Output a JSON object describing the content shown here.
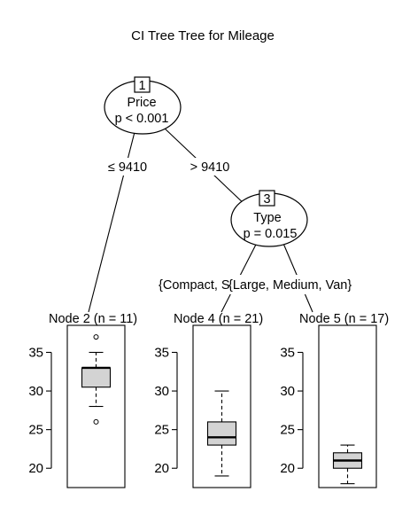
{
  "title": "CI Tree Tree for Mileage",
  "nodes": [
    {
      "id": "1",
      "variable": "Price",
      "pvalue": "p < 0.001"
    },
    {
      "id": "3",
      "variable": "Type",
      "pvalue": "p = 0.015"
    }
  ],
  "edges": [
    {
      "label": "≤ 9410"
    },
    {
      "label": "> 9410"
    },
    {
      "label": "{Compact, S"
    },
    {
      "label": "{Large, Medium, Van}"
    }
  ],
  "terminals": [
    {
      "label": "Node 2 (n = 11)"
    },
    {
      "label": "Node 4 (n = 21)"
    },
    {
      "label": "Node 5 (n = 17)"
    }
  ],
  "y_ticks": [
    "20",
    "25",
    "30",
    "35"
  ],
  "chart_data": {
    "type": "box",
    "ylim": [
      17.5,
      38.5
    ],
    "series": [
      {
        "name": "Node 2 (n = 11)",
        "q1": 30.5,
        "median": 33,
        "q3": 33,
        "whisker_low": 28,
        "whisker_high": 35,
        "outliers": [
          37,
          26
        ]
      },
      {
        "name": "Node 4 (n = 21)",
        "q1": 23,
        "median": 24,
        "q3": 26,
        "whisker_low": 19,
        "whisker_high": 30,
        "outliers": []
      },
      {
        "name": "Node 5 (n = 17)",
        "q1": 20,
        "median": 21,
        "q3": 22,
        "whisker_low": 18,
        "whisker_high": 23,
        "outliers": []
      }
    ]
  }
}
